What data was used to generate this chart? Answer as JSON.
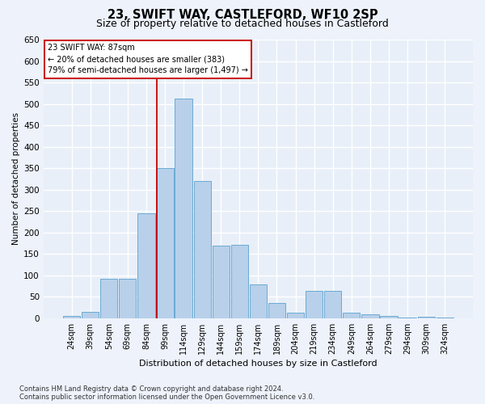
{
  "title": "23, SWIFT WAY, CASTLEFORD, WF10 2SP",
  "subtitle": "Size of property relative to detached houses in Castleford",
  "xlabel": "Distribution of detached houses by size in Castleford",
  "ylabel": "Number of detached properties",
  "categories": [
    "24sqm",
    "39sqm",
    "54sqm",
    "69sqm",
    "84sqm",
    "99sqm",
    "114sqm",
    "129sqm",
    "144sqm",
    "159sqm",
    "174sqm",
    "189sqm",
    "204sqm",
    "219sqm",
    "234sqm",
    "249sqm",
    "264sqm",
    "279sqm",
    "294sqm",
    "309sqm",
    "324sqm"
  ],
  "values": [
    5,
    15,
    92,
    92,
    245,
    350,
    512,
    320,
    170,
    172,
    78,
    35,
    13,
    63,
    63,
    13,
    10,
    5,
    2,
    3,
    2
  ],
  "bar_color": "#b8d0ea",
  "bar_edge_color": "#6aaad4",
  "background_color": "#e8eff8",
  "grid_color": "#ffffff",
  "vline_color": "#cc0000",
  "vline_x": 4.55,
  "annotation_line1": "23 SWIFT WAY: 87sqm",
  "annotation_line2": "← 20% of detached houses are smaller (383)",
  "annotation_line3": "79% of semi-detached houses are larger (1,497) →",
  "ylim": [
    0,
    650
  ],
  "yticks": [
    0,
    50,
    100,
    150,
    200,
    250,
    300,
    350,
    400,
    450,
    500,
    550,
    600,
    650
  ],
  "footer_line1": "Contains HM Land Registry data © Crown copyright and database right 2024.",
  "footer_line2": "Contains public sector information licensed under the Open Government Licence v3.0."
}
